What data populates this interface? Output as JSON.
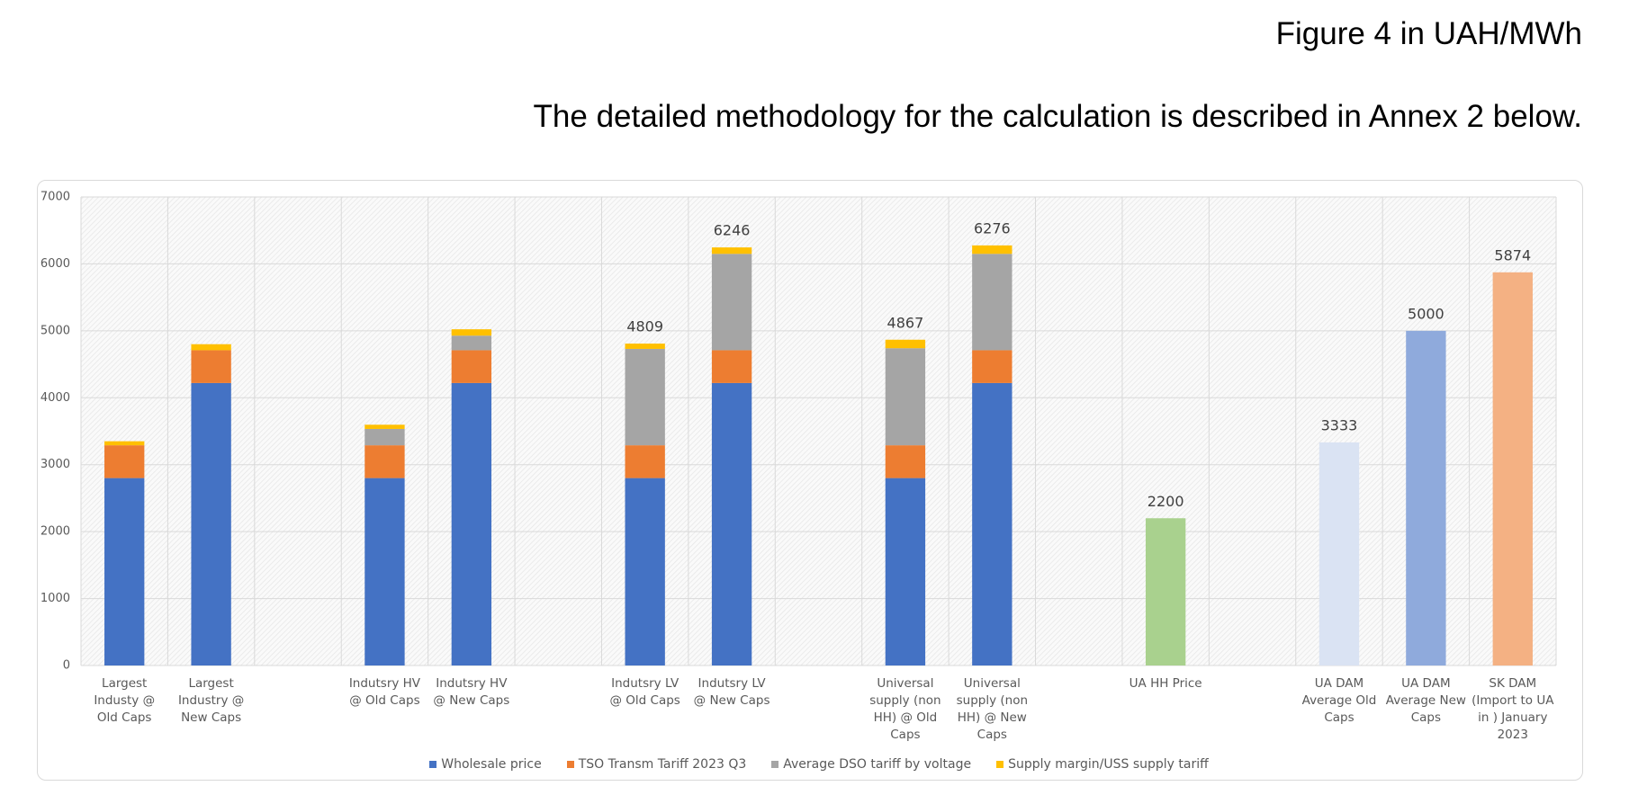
{
  "header": {
    "title": "Figure 4 in UAH/MWh",
    "subtitle": "The detailed methodology for the calculation is described in Annex 2 below."
  },
  "chart_data": {
    "type": "stacked-bar",
    "categories": [
      "Largest Industy @ Old Caps",
      "Largest Industry @ New Caps",
      null,
      "Indutsry HV @ Old Caps",
      "Indutsry HV @ New Caps",
      null,
      "Indutsry LV @ Old Caps",
      "Indutsry LV @ New Caps",
      null,
      "Universal supply (non HH) @ Old Caps",
      "Universal supply (non HH) @ New Caps",
      null,
      "UA HH Price",
      null,
      "UA DAM Average Old Caps",
      "UA DAM Average  New Caps",
      "SK DAM (Import to UA in ) January 2023"
    ],
    "series": [
      {
        "name": "Wholesale price",
        "color": "#4472c4",
        "values": [
          2800,
          4220,
          null,
          2800,
          4220,
          null,
          2800,
          4220,
          null,
          2800,
          4220,
          null,
          null,
          null,
          null,
          null,
          null
        ]
      },
      {
        "name": "TSO Transm Tariff 2023 Q3",
        "color": "#ed7d31",
        "values": [
          490,
          490,
          null,
          490,
          490,
          null,
          490,
          490,
          null,
          490,
          490,
          null,
          null,
          null,
          null,
          null,
          null
        ]
      },
      {
        "name": "Average DSO tariff by voltage",
        "color": "#a5a5a5",
        "values": [
          null,
          null,
          null,
          244,
          218,
          null,
          1440,
          1440,
          null,
          1450,
          1440,
          null,
          null,
          null,
          null,
          null,
          null
        ]
      },
      {
        "name": "Supply margin/USS supply tariff",
        "color": "#ffc000",
        "values": [
          60,
          90,
          null,
          63,
          95,
          null,
          79,
          96,
          null,
          127,
          126,
          null,
          null,
          null,
          null,
          null,
          null
        ]
      },
      {
        "colors": [
          null,
          null,
          null,
          null,
          null,
          null,
          null,
          null,
          null,
          null,
          null,
          null,
          "#a9d18e",
          null,
          "#dae3f3",
          "#8faadc",
          "#f4b183"
        ],
        "values": [
          null,
          null,
          null,
          null,
          null,
          null,
          null,
          null,
          null,
          null,
          null,
          null,
          2200,
          null,
          3333,
          5000,
          5874
        ]
      }
    ],
    "totals": [
      null,
      null,
      null,
      null,
      null,
      null,
      4809,
      6246,
      null,
      4867,
      6276,
      null,
      null,
      null,
      null,
      null,
      null
    ],
    "ylim": [
      0,
      7000
    ],
    "yticks": [
      0,
      1000,
      2000,
      3000,
      4000,
      5000,
      6000,
      7000
    ],
    "grid": true
  }
}
